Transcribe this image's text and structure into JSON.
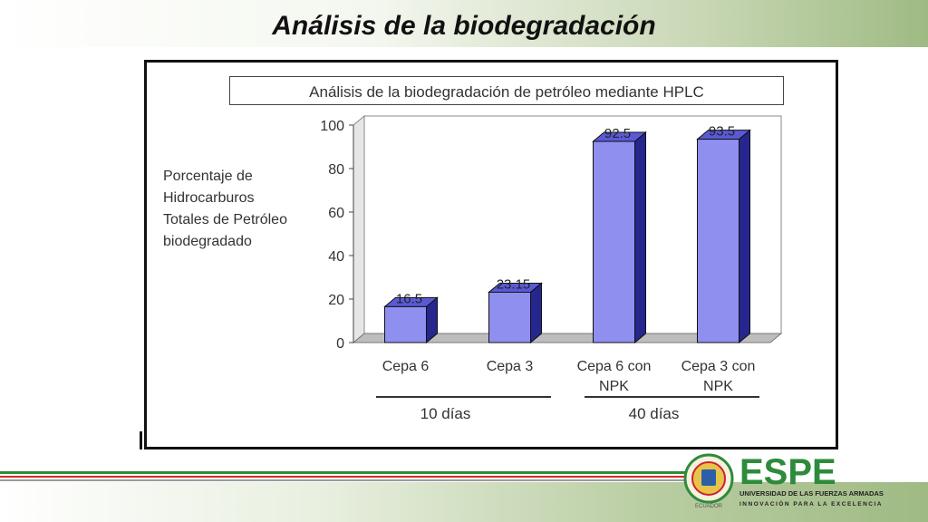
{
  "slide": {
    "title": "Análisis de la biodegradación"
  },
  "chart_data": {
    "type": "bar",
    "title": "Análisis de la biodegradación de petróleo mediante HPLC",
    "ylabel": "Porcentaje de\nHidrocarburos\nTotales de Petróleo\nbiodegradado",
    "xlabel": "",
    "ylim": [
      0,
      100
    ],
    "yticks": [
      "0",
      "20",
      "40",
      "60",
      "80",
      "100"
    ],
    "categories": [
      [
        "Cepa 6"
      ],
      [
        "Cepa 3"
      ],
      [
        "Cepa 6 con",
        "NPK"
      ],
      [
        "Cepa 3 con",
        "NPK"
      ]
    ],
    "values": [
      16.5,
      23.15,
      92.5,
      93.5
    ],
    "data_labels": [
      "16.5",
      "23.15",
      "92.5",
      "93.5"
    ],
    "groups": [
      {
        "label": "10 días",
        "from": 0,
        "to": 1
      },
      {
        "label": "40 días",
        "from": 2,
        "to": 3
      }
    ],
    "bar_color": "#8f8ff0",
    "bar_side_color": "#26268f",
    "bar_top_color": "#5a5ad8",
    "grid": false,
    "legend": "none"
  },
  "logo": {
    "brand": "ESPE",
    "line1": "UNIVERSIDAD DE LAS FUERZAS ARMADAS",
    "line2": "INNOVACIÓN PARA LA EXCELENCIA",
    "seal_text": "ECUADOR",
    "green": "#2e8b3b",
    "red": "#d22b2b"
  }
}
